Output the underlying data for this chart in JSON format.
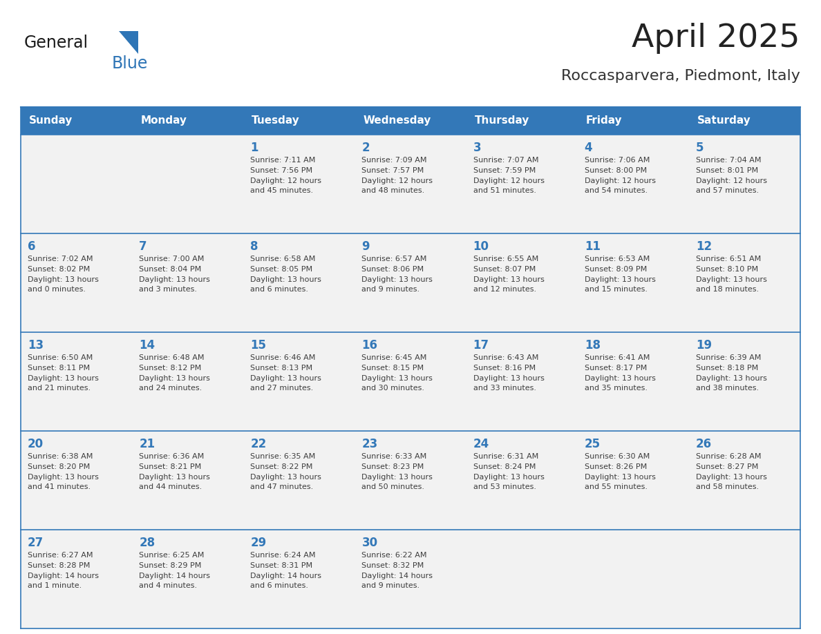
{
  "title": "April 2025",
  "subtitle": "Roccasparvera, Piedmont, Italy",
  "header_bg_color": "#3378B8",
  "header_text_color": "#FFFFFF",
  "day_names": [
    "Sunday",
    "Monday",
    "Tuesday",
    "Wednesday",
    "Thursday",
    "Friday",
    "Saturday"
  ],
  "cell_bg_color": "#F2F2F2",
  "border_color": "#3378B8",
  "text_color": "#3D3D3D",
  "date_color": "#3378B8",
  "title_color": "#222222",
  "subtitle_color": "#333333",
  "logo_general_color": "#1A1A1A",
  "logo_blue_color": "#2E75B6",
  "week_separator_color": "#3378B8",
  "calendar_data": [
    [
      {
        "day": null,
        "info": null
      },
      {
        "day": null,
        "info": null
      },
      {
        "day": 1,
        "info": "Sunrise: 7:11 AM\nSunset: 7:56 PM\nDaylight: 12 hours\nand 45 minutes."
      },
      {
        "day": 2,
        "info": "Sunrise: 7:09 AM\nSunset: 7:57 PM\nDaylight: 12 hours\nand 48 minutes."
      },
      {
        "day": 3,
        "info": "Sunrise: 7:07 AM\nSunset: 7:59 PM\nDaylight: 12 hours\nand 51 minutes."
      },
      {
        "day": 4,
        "info": "Sunrise: 7:06 AM\nSunset: 8:00 PM\nDaylight: 12 hours\nand 54 minutes."
      },
      {
        "day": 5,
        "info": "Sunrise: 7:04 AM\nSunset: 8:01 PM\nDaylight: 12 hours\nand 57 minutes."
      }
    ],
    [
      {
        "day": 6,
        "info": "Sunrise: 7:02 AM\nSunset: 8:02 PM\nDaylight: 13 hours\nand 0 minutes."
      },
      {
        "day": 7,
        "info": "Sunrise: 7:00 AM\nSunset: 8:04 PM\nDaylight: 13 hours\nand 3 minutes."
      },
      {
        "day": 8,
        "info": "Sunrise: 6:58 AM\nSunset: 8:05 PM\nDaylight: 13 hours\nand 6 minutes."
      },
      {
        "day": 9,
        "info": "Sunrise: 6:57 AM\nSunset: 8:06 PM\nDaylight: 13 hours\nand 9 minutes."
      },
      {
        "day": 10,
        "info": "Sunrise: 6:55 AM\nSunset: 8:07 PM\nDaylight: 13 hours\nand 12 minutes."
      },
      {
        "day": 11,
        "info": "Sunrise: 6:53 AM\nSunset: 8:09 PM\nDaylight: 13 hours\nand 15 minutes."
      },
      {
        "day": 12,
        "info": "Sunrise: 6:51 AM\nSunset: 8:10 PM\nDaylight: 13 hours\nand 18 minutes."
      }
    ],
    [
      {
        "day": 13,
        "info": "Sunrise: 6:50 AM\nSunset: 8:11 PM\nDaylight: 13 hours\nand 21 minutes."
      },
      {
        "day": 14,
        "info": "Sunrise: 6:48 AM\nSunset: 8:12 PM\nDaylight: 13 hours\nand 24 minutes."
      },
      {
        "day": 15,
        "info": "Sunrise: 6:46 AM\nSunset: 8:13 PM\nDaylight: 13 hours\nand 27 minutes."
      },
      {
        "day": 16,
        "info": "Sunrise: 6:45 AM\nSunset: 8:15 PM\nDaylight: 13 hours\nand 30 minutes."
      },
      {
        "day": 17,
        "info": "Sunrise: 6:43 AM\nSunset: 8:16 PM\nDaylight: 13 hours\nand 33 minutes."
      },
      {
        "day": 18,
        "info": "Sunrise: 6:41 AM\nSunset: 8:17 PM\nDaylight: 13 hours\nand 35 minutes."
      },
      {
        "day": 19,
        "info": "Sunrise: 6:39 AM\nSunset: 8:18 PM\nDaylight: 13 hours\nand 38 minutes."
      }
    ],
    [
      {
        "day": 20,
        "info": "Sunrise: 6:38 AM\nSunset: 8:20 PM\nDaylight: 13 hours\nand 41 minutes."
      },
      {
        "day": 21,
        "info": "Sunrise: 6:36 AM\nSunset: 8:21 PM\nDaylight: 13 hours\nand 44 minutes."
      },
      {
        "day": 22,
        "info": "Sunrise: 6:35 AM\nSunset: 8:22 PM\nDaylight: 13 hours\nand 47 minutes."
      },
      {
        "day": 23,
        "info": "Sunrise: 6:33 AM\nSunset: 8:23 PM\nDaylight: 13 hours\nand 50 minutes."
      },
      {
        "day": 24,
        "info": "Sunrise: 6:31 AM\nSunset: 8:24 PM\nDaylight: 13 hours\nand 53 minutes."
      },
      {
        "day": 25,
        "info": "Sunrise: 6:30 AM\nSunset: 8:26 PM\nDaylight: 13 hours\nand 55 minutes."
      },
      {
        "day": 26,
        "info": "Sunrise: 6:28 AM\nSunset: 8:27 PM\nDaylight: 13 hours\nand 58 minutes."
      }
    ],
    [
      {
        "day": 27,
        "info": "Sunrise: 6:27 AM\nSunset: 8:28 PM\nDaylight: 14 hours\nand 1 minute."
      },
      {
        "day": 28,
        "info": "Sunrise: 6:25 AM\nSunset: 8:29 PM\nDaylight: 14 hours\nand 4 minutes."
      },
      {
        "day": 29,
        "info": "Sunrise: 6:24 AM\nSunset: 8:31 PM\nDaylight: 14 hours\nand 6 minutes."
      },
      {
        "day": 30,
        "info": "Sunrise: 6:22 AM\nSunset: 8:32 PM\nDaylight: 14 hours\nand 9 minutes."
      },
      {
        "day": null,
        "info": null
      },
      {
        "day": null,
        "info": null
      },
      {
        "day": null,
        "info": null
      }
    ]
  ]
}
